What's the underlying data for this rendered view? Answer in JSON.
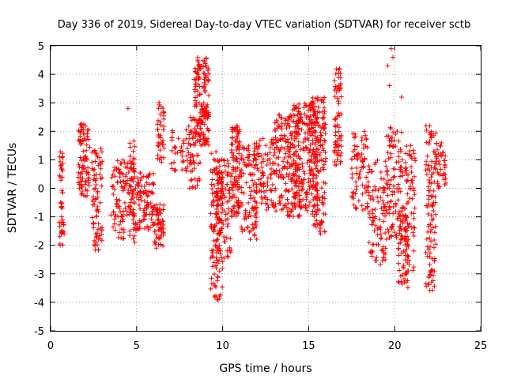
{
  "chart_data": {
    "type": "scatter",
    "title": "Day 336 of 2019, Sidereal Day-to-day VTEC variation (SDTVAR) for receiver sctb",
    "xlabel": "GPS time / hours",
    "ylabel": "SDTVAR / TECUs",
    "xlim": [
      0,
      25
    ],
    "ylim": [
      -5,
      5
    ],
    "xticks": [
      0,
      5,
      10,
      15,
      20,
      25
    ],
    "yticks": [
      -5,
      -4,
      -3,
      -2,
      -1,
      0,
      1,
      2,
      3,
      4,
      5
    ],
    "grid": true,
    "marker": "plus",
    "color": "#ff0000",
    "series": [
      {
        "name": "SDTVAR",
        "segments": [
          {
            "x0": 0.5,
            "x1": 0.8,
            "y": [
              -2.1,
              1.3
            ],
            "n": 45
          },
          {
            "x0": 1.6,
            "x1": 2.3,
            "y": [
              -0.3,
              2.3
            ],
            "n": 90
          },
          {
            "x0": 2.4,
            "x1": 3.0,
            "y": [
              -2.2,
              1.5
            ],
            "n": 80
          },
          {
            "x0": 3.5,
            "x1": 4.3,
            "y": [
              -1.8,
              1.0
            ],
            "n": 70
          },
          {
            "x0": 4.3,
            "x1": 4.9,
            "y": [
              -1.0,
              1.2
            ],
            "n": 50
          },
          {
            "x0": 4.6,
            "x1": 5.0,
            "y": [
              -1.9,
              1.9
            ],
            "n": 40
          },
          {
            "x0": 5.0,
            "x1": 6.0,
            "y": [
              -1.5,
              0.6
            ],
            "n": 90
          },
          {
            "x0": 6.0,
            "x1": 6.6,
            "y": [
              -2.1,
              -0.5
            ],
            "n": 60
          },
          {
            "x0": 6.2,
            "x1": 6.6,
            "y": [
              0.9,
              3.1
            ],
            "n": 40
          },
          {
            "x0": 7.0,
            "x1": 8.4,
            "y": [
              0.6,
              2.1
            ],
            "n": 50
          },
          {
            "x0": 8.3,
            "x1": 9.2,
            "y": [
              1.5,
              4.6
            ],
            "n": 160
          },
          {
            "x0": 8.0,
            "x1": 8.8,
            "y": [
              0.0,
              2.5
            ],
            "n": 40
          },
          {
            "x0": 9.3,
            "x1": 10.0,
            "y": [
              -4.0,
              1.3
            ],
            "n": 120
          },
          {
            "x0": 9.6,
            "x1": 10.5,
            "y": [
              -2.5,
              1.0
            ],
            "n": 100
          },
          {
            "x0": 10.5,
            "x1": 11.0,
            "y": [
              -1.0,
              2.2
            ],
            "n": 100
          },
          {
            "x0": 11.0,
            "x1": 12.0,
            "y": [
              -1.8,
              1.5
            ],
            "n": 100
          },
          {
            "x0": 11.8,
            "x1": 13.0,
            "y": [
              -0.8,
              1.8
            ],
            "n": 90
          },
          {
            "x0": 13.0,
            "x1": 14.5,
            "y": [
              -1.0,
              2.6
            ],
            "n": 180
          },
          {
            "x0": 14.0,
            "x1": 15.5,
            "y": [
              -0.8,
              3.0
            ],
            "n": 200
          },
          {
            "x0": 15.0,
            "x1": 16.0,
            "y": [
              0.5,
              3.2
            ],
            "n": 120
          },
          {
            "x0": 15.2,
            "x1": 16.0,
            "y": [
              -1.6,
              0.3
            ],
            "n": 60
          },
          {
            "x0": 16.5,
            "x1": 16.9,
            "y": [
              0.8,
              4.2
            ],
            "n": 70
          },
          {
            "x0": 17.5,
            "x1": 18.5,
            "y": [
              -0.8,
              2.0
            ],
            "n": 80
          },
          {
            "x0": 18.5,
            "x1": 19.5,
            "y": [
              -2.7,
              1.0
            ],
            "n": 90
          },
          {
            "x0": 19.5,
            "x1": 20.5,
            "y": [
              -1.8,
              2.2
            ],
            "n": 100
          },
          {
            "x0": 20.2,
            "x1": 20.8,
            "y": [
              -3.5,
              -0.5
            ],
            "n": 70
          },
          {
            "x0": 20.6,
            "x1": 21.2,
            "y": [
              -3.0,
              1.5
            ],
            "n": 70
          },
          {
            "x0": 21.8,
            "x1": 22.4,
            "y": [
              -3.6,
              2.2
            ],
            "n": 110
          },
          {
            "x0": 22.4,
            "x1": 23.0,
            "y": [
              0.0,
              1.6
            ],
            "n": 40
          }
        ],
        "points": [
          {
            "x": 4.5,
            "y": 2.8
          },
          {
            "x": 19.8,
            "y": 4.9
          },
          {
            "x": 19.9,
            "y": 4.6
          },
          {
            "x": 19.6,
            "y": 4.3
          },
          {
            "x": 20.4,
            "y": 3.2
          },
          {
            "x": 19.7,
            "y": 3.6
          },
          {
            "x": 16.8,
            "y": 4.2
          }
        ]
      }
    ]
  }
}
